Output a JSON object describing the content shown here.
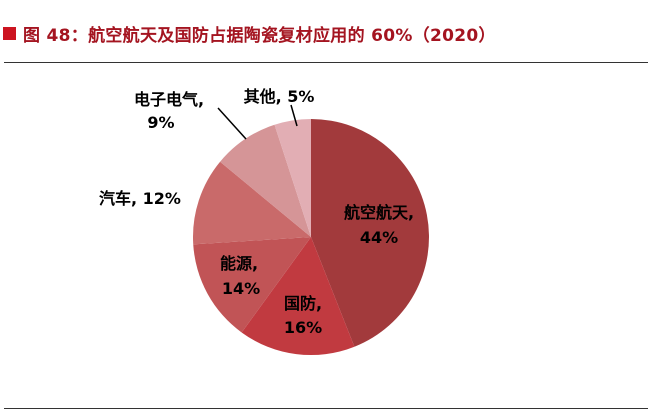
{
  "figure": {
    "title": "图 48：航空航天及国防占据陶瓷复材应用的 60%（2020）",
    "title_color": "#a41420",
    "marker_color": "#cc1420",
    "rule_color": "#333333"
  },
  "chart_data": {
    "type": "pie",
    "title": "图 48：航空航天及国防占据陶瓷复材应用的 60%（2020）",
    "unit": "%",
    "start_angle_deg": 0,
    "direction": "clockwise",
    "legend": "none",
    "segments": [
      {
        "id": "aerospace",
        "name": "航空航天",
        "value": 44,
        "color": "#a23a3c",
        "label_placement": "inside",
        "label_lines": [
          "航空航天,",
          "44%"
        ]
      },
      {
        "id": "defense",
        "name": "国防",
        "value": 16,
        "color": "#c13a40",
        "label_placement": "inside",
        "label_lines": [
          "国防,",
          "16%"
        ]
      },
      {
        "id": "energy",
        "name": "能源",
        "value": 14,
        "color": "#c15456",
        "label_placement": "inside",
        "label_lines": [
          "能源,",
          "14%"
        ]
      },
      {
        "id": "automotive",
        "name": "汽车",
        "value": 12,
        "color": "#c96a6a",
        "label_placement": "outside",
        "label_lines": [
          "汽车, 12%"
        ]
      },
      {
        "id": "electronics",
        "name": "电子电气",
        "value": 9,
        "color": "#d59597",
        "label_placement": "outside",
        "label_lines": [
          "电子电气,",
          "9%"
        ]
      },
      {
        "id": "others",
        "name": "其他",
        "value": 5,
        "color": "#e2aeb4",
        "label_placement": "outside",
        "label_lines": [
          "其他, 5%"
        ]
      }
    ]
  }
}
